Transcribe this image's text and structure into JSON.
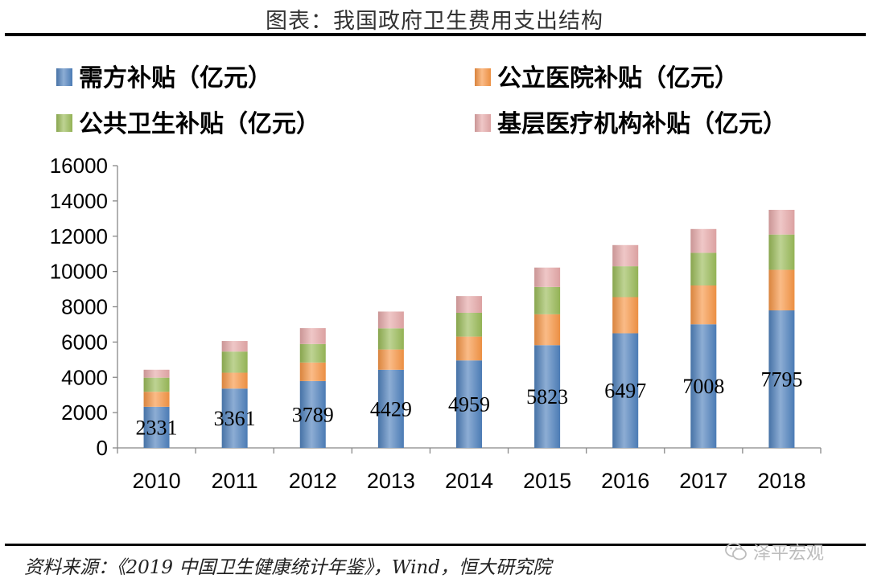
{
  "header": {
    "title": "图表：我国政府卫生费用支出结构"
  },
  "footer": {
    "source": "资料来源：《2019 中国卫生健康统计年鉴》，Wind，恒大研究院",
    "watermark": "泽平宏观"
  },
  "chart_data": {
    "type": "bar",
    "stacked": true,
    "categories": [
      "2010",
      "2011",
      "2012",
      "2013",
      "2014",
      "2015",
      "2016",
      "2017",
      "2018"
    ],
    "ylim": [
      0,
      16000
    ],
    "yticks": [
      0,
      2000,
      4000,
      6000,
      8000,
      10000,
      12000,
      14000,
      16000
    ],
    "grid": false,
    "legend_position": "top",
    "series": [
      {
        "name": "需方补贴（亿元）",
        "color": "#4f81bd",
        "values": [
          2331,
          3361,
          3789,
          4429,
          4959,
          5823,
          6497,
          7008,
          7795
        ]
      },
      {
        "name": "公立医院补贴（亿元）",
        "color": "#f79646",
        "values": [
          850,
          900,
          1050,
          1150,
          1350,
          1750,
          2050,
          2200,
          2300
        ]
      },
      {
        "name": "公共卫生补贴（亿元）",
        "color": "#9bbb59",
        "values": [
          800,
          1200,
          1050,
          1200,
          1350,
          1550,
          1750,
          1850,
          2000
        ]
      },
      {
        "name": "基层医疗机构补贴（亿元）",
        "color": "#e6a9a9",
        "values": [
          450,
          600,
          900,
          950,
          950,
          1100,
          1200,
          1350,
          1400
        ]
      }
    ],
    "data_labels": {
      "series_index": 0,
      "values": [
        2331,
        3361,
        3789,
        4429,
        4959,
        5823,
        6497,
        7008,
        7795
      ]
    }
  }
}
